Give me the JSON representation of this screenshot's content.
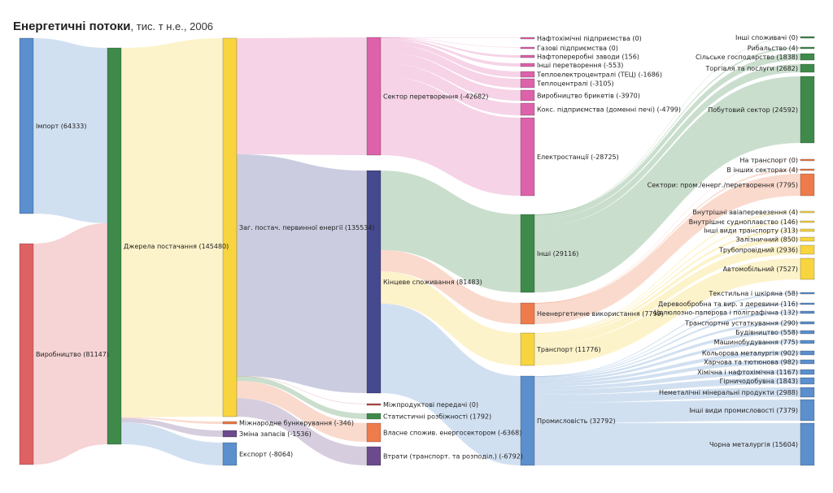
{
  "title": "Енергетичні потоки",
  "subtitle": ", тис. т н.е., 2006",
  "chart_data": {
    "type": "sankey",
    "title": "Енергетичні потоки",
    "subtitle": "тис. т н.е., 2006",
    "nodes": [
      {
        "id": "import",
        "label": "Імпорт (64333)",
        "value": 64333,
        "color": "#5b8fcd"
      },
      {
        "id": "prod",
        "label": "Виробництво (81147)",
        "value": 81147,
        "color": "#de6164"
      },
      {
        "id": "src",
        "label": "Джерела постачання (145480)",
        "value": 145480,
        "color": "#3f8a4b"
      },
      {
        "id": "tpes",
        "label": "Заг. постач. первинної енергії (135534)",
        "value": 135534,
        "color": "#f8d53f"
      },
      {
        "id": "bunk",
        "label": "Міжнародне бункерування (-346)",
        "value": 346,
        "color": "#ee7b4b"
      },
      {
        "id": "stock",
        "label": "Зміна запасів (-1536)",
        "value": 1536,
        "color": "#6b4b8d"
      },
      {
        "id": "exp",
        "label": "Експорт (-8064)",
        "value": 8064,
        "color": "#5b8fcd"
      },
      {
        "id": "trans",
        "label": "Сектор перетворення (-42682)",
        "value": 42682,
        "color": "#dd62a9"
      },
      {
        "id": "fin",
        "label": "Кінцеве споживання (81483)",
        "value": 81483,
        "color": "#45498e"
      },
      {
        "id": "interp",
        "label": "Міжпродуктові передачі (0)",
        "value": 0,
        "color": "#c04848"
      },
      {
        "id": "stat",
        "label": "Статистичні розбіжності (1792)",
        "value": 1792,
        "color": "#3f8a4b"
      },
      {
        "id": "own",
        "label": "Власне спожив. енергосектором (-6368)",
        "value": 6368,
        "color": "#ee7b4b"
      },
      {
        "id": "loss",
        "label": "Втрати (транспорт. та розподіл.) (-6792)",
        "value": 6792,
        "color": "#6b4b8d"
      },
      {
        "id": "t1",
        "label": "Нафтохімічні підприємства (0)",
        "value": 0,
        "color": "#dd62a9"
      },
      {
        "id": "t2",
        "label": "Газові підприємства (0)",
        "value": 0,
        "color": "#dd62a9"
      },
      {
        "id": "t3",
        "label": "Нафтопереробні заводи (156)",
        "value": 156,
        "color": "#dd62a9"
      },
      {
        "id": "t4",
        "label": "Інші перетворення (-553)",
        "value": 553,
        "color": "#dd62a9"
      },
      {
        "id": "t5",
        "label": "Теплоелектроцентралі (ТЕЦ) (-1686)",
        "value": 1686,
        "color": "#dd62a9"
      },
      {
        "id": "t6",
        "label": "Теплоцентралі (-3105)",
        "value": 3105,
        "color": "#dd62a9"
      },
      {
        "id": "t7",
        "label": "Виробництво брикетів (-3970)",
        "value": 3970,
        "color": "#dd62a9"
      },
      {
        "id": "t8",
        "label": "Кокс. підприємства (доменні печі) (-4799)",
        "value": 4799,
        "color": "#dd62a9"
      },
      {
        "id": "t9",
        "label": "Електростанції (-28725)",
        "value": 28725,
        "color": "#dd62a9"
      },
      {
        "id": "other",
        "label": "Інші (29116)",
        "value": 29116,
        "color": "#3f8a4b"
      },
      {
        "id": "nonen",
        "label": "Неенергетичне використання (7799)",
        "value": 7799,
        "color": "#ee7b4b"
      },
      {
        "id": "transp",
        "label": "Транспорт (11776)",
        "value": 11776,
        "color": "#f8d53f"
      },
      {
        "id": "ind",
        "label": "Промисловість (32792)",
        "value": 32792,
        "color": "#5b8fcd"
      },
      {
        "id": "o1",
        "label": "Інші споживачі (0)",
        "value": 0,
        "color": "#3f8a4b"
      },
      {
        "id": "o2",
        "label": "Рибальство (4)",
        "value": 4,
        "color": "#3f8a4b"
      },
      {
        "id": "o3",
        "label": "Сільське господарство (1838)",
        "value": 1838,
        "color": "#3f8a4b"
      },
      {
        "id": "o4",
        "label": "Торгівля та послуги (2682)",
        "value": 2682,
        "color": "#3f8a4b"
      },
      {
        "id": "o5",
        "label": "Побутовий сектор (24592)",
        "value": 24592,
        "color": "#3f8a4b"
      },
      {
        "id": "n1",
        "label": "На транспорт (0)",
        "value": 0,
        "color": "#ee7b4b"
      },
      {
        "id": "n2",
        "label": "В інших секторах (4)",
        "value": 4,
        "color": "#ee7b4b"
      },
      {
        "id": "n3",
        "label": "Сектори: пром./енерг./перетворення (7795)",
        "value": 7795,
        "color": "#ee7b4b"
      },
      {
        "id": "r1",
        "label": "Внутрішні авіаперевезення (4)",
        "value": 4,
        "color": "#f8d53f"
      },
      {
        "id": "r2",
        "label": "Внутрішнє судноплавство (146)",
        "value": 146,
        "color": "#f8d53f"
      },
      {
        "id": "r3",
        "label": "Інші види транспорту (313)",
        "value": 313,
        "color": "#f8d53f"
      },
      {
        "id": "r4",
        "label": "Залізничний (850)",
        "value": 850,
        "color": "#f8d53f"
      },
      {
        "id": "r5",
        "label": "Трубопровідний (2936)",
        "value": 2936,
        "color": "#f8d53f"
      },
      {
        "id": "r6",
        "label": "Автомобільний (7527)",
        "value": 7527,
        "color": "#f8d53f"
      },
      {
        "id": "i1",
        "label": "Текстильна і шкіряна (58)",
        "value": 58,
        "color": "#5b8fcd"
      },
      {
        "id": "i2",
        "label": "Деревообробна та вир. з деревини (116)",
        "value": 116,
        "color": "#5b8fcd"
      },
      {
        "id": "i3",
        "label": "Целюлозно-паперова і поліграфічна (132)",
        "value": 132,
        "color": "#5b8fcd"
      },
      {
        "id": "i4",
        "label": "Транспортне устаткування (290)",
        "value": 290,
        "color": "#5b8fcd"
      },
      {
        "id": "i5",
        "label": "Будівництво (558)",
        "value": 558,
        "color": "#5b8fcd"
      },
      {
        "id": "i6",
        "label": "Машинобудування (775)",
        "value": 775,
        "color": "#5b8fcd"
      },
      {
        "id": "i7",
        "label": "Кольорова металургія (902)",
        "value": 902,
        "color": "#5b8fcd"
      },
      {
        "id": "i8",
        "label": "Харчова та тютюнова (982)",
        "value": 982,
        "color": "#5b8fcd"
      },
      {
        "id": "i9",
        "label": "Хімічна і нафтохімічна (1167)",
        "value": 1167,
        "color": "#5b8fcd"
      },
      {
        "id": "i10",
        "label": "Гірничодобувна (1843)",
        "value": 1843,
        "color": "#5b8fcd"
      },
      {
        "id": "i11",
        "label": "Неметалічні мінеральні продукти (2988)",
        "value": 2988,
        "color": "#5b8fcd"
      },
      {
        "id": "i12",
        "label": "Інші види промисловості (7379)",
        "value": 7379,
        "color": "#5b8fcd"
      },
      {
        "id": "i13",
        "label": "Чорна металургія (15604)",
        "value": 15604,
        "color": "#5b8fcd"
      }
    ],
    "links": [
      {
        "source": "import",
        "target": "src",
        "value": 64333
      },
      {
        "source": "prod",
        "target": "src",
        "value": 81147
      },
      {
        "source": "src",
        "target": "tpes",
        "value": 135534
      },
      {
        "source": "src",
        "target": "bunk",
        "value": 346
      },
      {
        "source": "src",
        "target": "stock",
        "value": 1536
      },
      {
        "source": "src",
        "target": "exp",
        "value": 8064
      },
      {
        "source": "tpes",
        "target": "trans",
        "value": 42682
      },
      {
        "source": "tpes",
        "target": "fin",
        "value": 81483
      },
      {
        "source": "tpes",
        "target": "interp",
        "value": 0
      },
      {
        "source": "tpes",
        "target": "stat",
        "value": 1792
      },
      {
        "source": "tpes",
        "target": "own",
        "value": 6368
      },
      {
        "source": "tpes",
        "target": "loss",
        "value": 6792
      },
      {
        "source": "trans",
        "target": "t1",
        "value": 0
      },
      {
        "source": "trans",
        "target": "t2",
        "value": 0
      },
      {
        "source": "trans",
        "target": "t3",
        "value": 156
      },
      {
        "source": "trans",
        "target": "t4",
        "value": 553
      },
      {
        "source": "trans",
        "target": "t5",
        "value": 1686
      },
      {
        "source": "trans",
        "target": "t6",
        "value": 3105
      },
      {
        "source": "trans",
        "target": "t7",
        "value": 3970
      },
      {
        "source": "trans",
        "target": "t8",
        "value": 4799
      },
      {
        "source": "trans",
        "target": "t9",
        "value": 28725
      },
      {
        "source": "fin",
        "target": "other",
        "value": 29116
      },
      {
        "source": "fin",
        "target": "nonen",
        "value": 7799
      },
      {
        "source": "fin",
        "target": "transp",
        "value": 11776
      },
      {
        "source": "fin",
        "target": "ind",
        "value": 32792
      },
      {
        "source": "other",
        "target": "o1",
        "value": 0
      },
      {
        "source": "other",
        "target": "o2",
        "value": 4
      },
      {
        "source": "other",
        "target": "o3",
        "value": 1838
      },
      {
        "source": "other",
        "target": "o4",
        "value": 2682
      },
      {
        "source": "other",
        "target": "o5",
        "value": 24592
      },
      {
        "source": "nonen",
        "target": "n1",
        "value": 0
      },
      {
        "source": "nonen",
        "target": "n2",
        "value": 4
      },
      {
        "source": "nonen",
        "target": "n3",
        "value": 7795
      },
      {
        "source": "transp",
        "target": "r1",
        "value": 4
      },
      {
        "source": "transp",
        "target": "r2",
        "value": 146
      },
      {
        "source": "transp",
        "target": "r3",
        "value": 313
      },
      {
        "source": "transp",
        "target": "r4",
        "value": 850
      },
      {
        "source": "transp",
        "target": "r5",
        "value": 2936
      },
      {
        "source": "transp",
        "target": "r6",
        "value": 7527
      },
      {
        "source": "ind",
        "target": "i1",
        "value": 58
      },
      {
        "source": "ind",
        "target": "i2",
        "value": 116
      },
      {
        "source": "ind",
        "target": "i3",
        "value": 132
      },
      {
        "source": "ind",
        "target": "i4",
        "value": 290
      },
      {
        "source": "ind",
        "target": "i5",
        "value": 558
      },
      {
        "source": "ind",
        "target": "i6",
        "value": 775
      },
      {
        "source": "ind",
        "target": "i7",
        "value": 902
      },
      {
        "source": "ind",
        "target": "i8",
        "value": 982
      },
      {
        "source": "ind",
        "target": "i9",
        "value": 1167
      },
      {
        "source": "ind",
        "target": "i10",
        "value": 1843
      },
      {
        "source": "ind",
        "target": "i11",
        "value": 2988
      },
      {
        "source": "ind",
        "target": "i12",
        "value": 7379
      },
      {
        "source": "ind",
        "target": "i13",
        "value": 15604
      }
    ]
  }
}
